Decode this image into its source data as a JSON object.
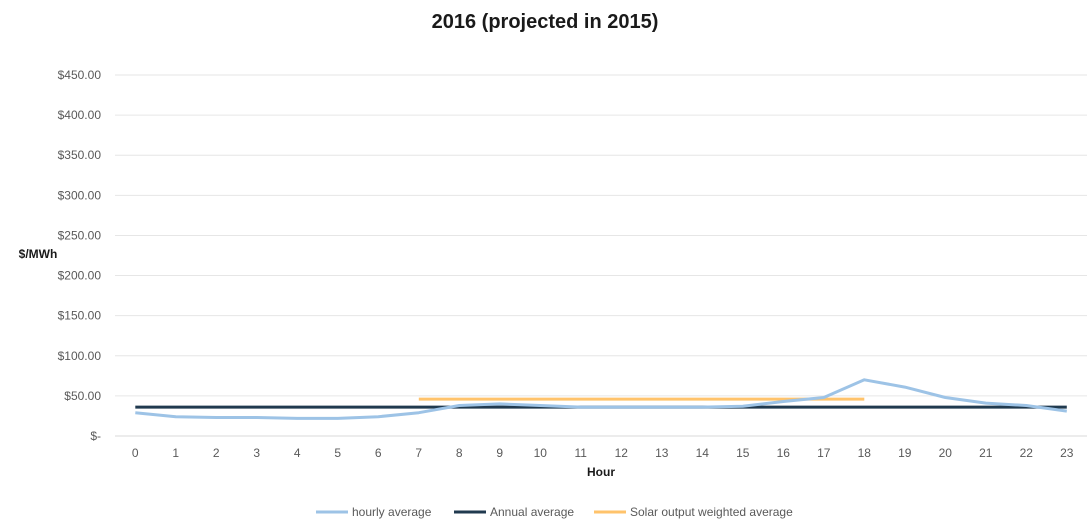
{
  "chart_data": {
    "type": "line",
    "title": "2016 (projected in 2015)",
    "xlabel": "Hour",
    "ylabel": "$/MWh",
    "x": [
      0,
      1,
      2,
      3,
      4,
      5,
      6,
      7,
      8,
      9,
      10,
      11,
      12,
      13,
      14,
      15,
      16,
      17,
      18,
      19,
      20,
      21,
      22,
      23
    ],
    "x_tick_labels": [
      "0",
      "1",
      "2",
      "3",
      "4",
      "5",
      "6",
      "7",
      "8",
      "9",
      "10",
      "11",
      "12",
      "13",
      "14",
      "15",
      "16",
      "17",
      "18",
      "19",
      "20",
      "21",
      "22",
      "23"
    ],
    "ylim": [
      0,
      450
    ],
    "y_ticks": [
      0,
      50,
      100,
      150,
      200,
      250,
      300,
      350,
      400,
      450
    ],
    "y_tick_labels": [
      "$-",
      "$50.00",
      "$100.00",
      "$150.00",
      "$200.00",
      "$250.00",
      "$300.00",
      "$350.00",
      "$400.00",
      "$450.00"
    ],
    "grid": true,
    "legend_position": "bottom",
    "series": [
      {
        "name": "hourly average",
        "color": "#9dc3e6",
        "x": [
          0,
          1,
          2,
          3,
          4,
          5,
          6,
          7,
          8,
          9,
          10,
          11,
          12,
          13,
          14,
          15,
          16,
          17,
          18,
          19,
          20,
          21,
          22,
          23
        ],
        "values": [
          29,
          24,
          23,
          23,
          22,
          22,
          24,
          29,
          38,
          40,
          38,
          36,
          36,
          36,
          36,
          37,
          43,
          48,
          70,
          61,
          48,
          41,
          38,
          31
        ]
      },
      {
        "name": "Annual average",
        "color": "#203a4f",
        "x": [
          0,
          23
        ],
        "values": [
          36,
          36
        ]
      },
      {
        "name": "Solar output weighted average",
        "color": "#ffc36b",
        "x": [
          7,
          18
        ],
        "values": [
          46,
          46
        ]
      }
    ]
  }
}
